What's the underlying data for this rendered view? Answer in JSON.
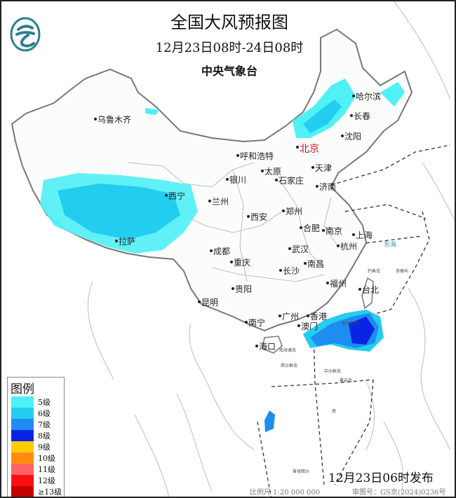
{
  "header": {
    "title": "全国大风预报图",
    "period": "12月23日08时-24日08时",
    "agency": "中央气象台"
  },
  "legend": {
    "title": "图例",
    "items": [
      {
        "label": "5级",
        "color": "#4ff0f6"
      },
      {
        "label": "6级",
        "color": "#22cdef"
      },
      {
        "label": "7级",
        "color": "#1e8cf0"
      },
      {
        "label": "8级",
        "color": "#0a24e6"
      },
      {
        "label": "9级",
        "color": "#ffcc00"
      },
      {
        "label": "10级",
        "color": "#ff8c10"
      },
      {
        "label": "11级",
        "color": "#ff6464"
      },
      {
        "label": "12级",
        "color": "#ff1010"
      },
      {
        "label": "≥13级",
        "color": "#c40000"
      }
    ]
  },
  "cities": [
    "哈尔滨",
    "长春",
    "沈阳",
    "乌鲁木齐",
    "呼和浩特",
    "北京",
    "天津",
    "银川",
    "太原",
    "石家庄",
    "济南",
    "西宁",
    "兰州",
    "郑州",
    "西安",
    "合肥",
    "南京",
    "上海",
    "拉萨",
    "成都",
    "武汉",
    "杭州",
    "重庆",
    "南昌",
    "长沙",
    "福州",
    "台北",
    "贵阳",
    "昆明",
    "广州",
    "香港",
    "澳门",
    "南宁",
    "海口"
  ],
  "sea_labels": [
    "东海",
    "钓鱼岛",
    "赤尾屿",
    "东沙群岛",
    "南海诸岛",
    "西沙群岛",
    "中沙群岛",
    "黄岩岛",
    "南",
    "曾母暗沙"
  ],
  "footer": {
    "issued": "12月23日06时发布",
    "scale": "比例尺 1:20 000 000",
    "review": "审图号：GS京(2024)0236号"
  },
  "colors": {
    "border": "#888888",
    "capital": "#d01010",
    "logo": "#2a7f8f"
  }
}
